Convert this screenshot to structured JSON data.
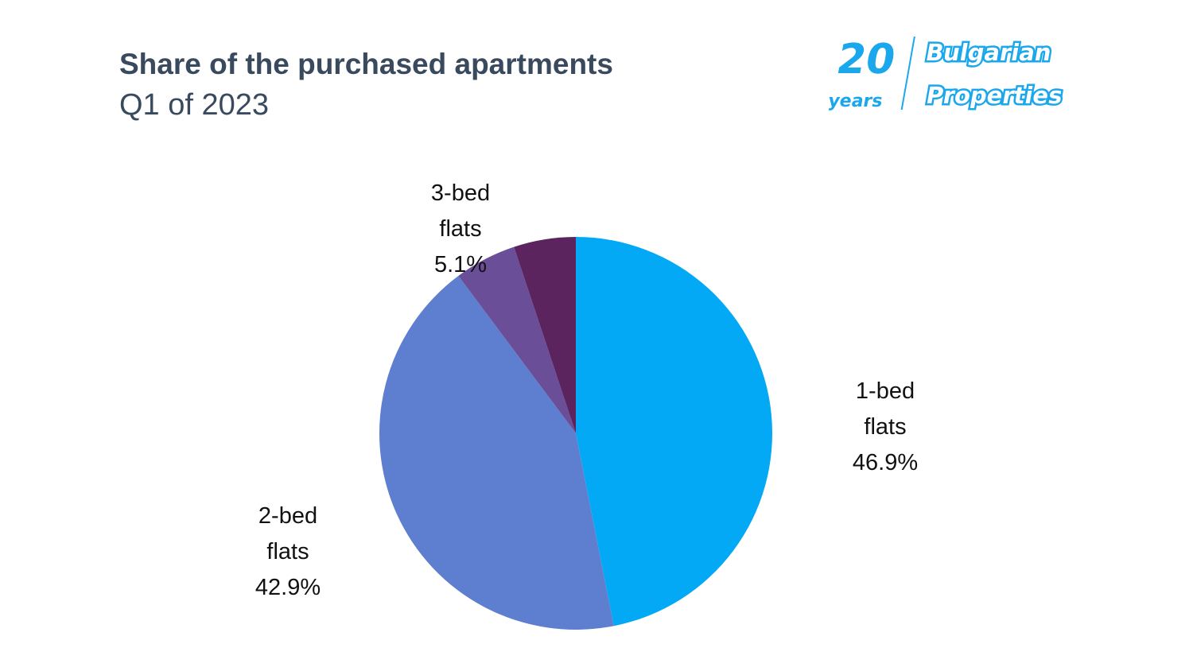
{
  "header": {
    "title": "Share of the purchased apartments",
    "subtitle": "Q1 of 2023"
  },
  "logo": {
    "text_number": "20",
    "text_years": "years",
    "text_line1": "Bulgarian",
    "text_line2": "Properties",
    "color": "#1aa7ec"
  },
  "chart_data": {
    "type": "pie",
    "title": "Share of the purchased apartments",
    "subtitle": "Q1 of 2023",
    "start": "top",
    "direction": "clockwise",
    "slices": [
      {
        "label_line1": "1-bed",
        "label_line2": "flats",
        "percent_label": "46.9%",
        "value": 46.9,
        "color": "#03a9f4"
      },
      {
        "label_line1": "2-bed",
        "label_line2": "flats",
        "percent_label": "42.9%",
        "value": 42.9,
        "color": "#5e7ed0"
      },
      {
        "label_line1": "3-bed",
        "label_line2": "flats",
        "percent_label": "5.1%",
        "value": 5.1,
        "color": "#6a4f98"
      },
      {
        "value": 5.1,
        "color": "#5c245e"
      }
    ]
  }
}
